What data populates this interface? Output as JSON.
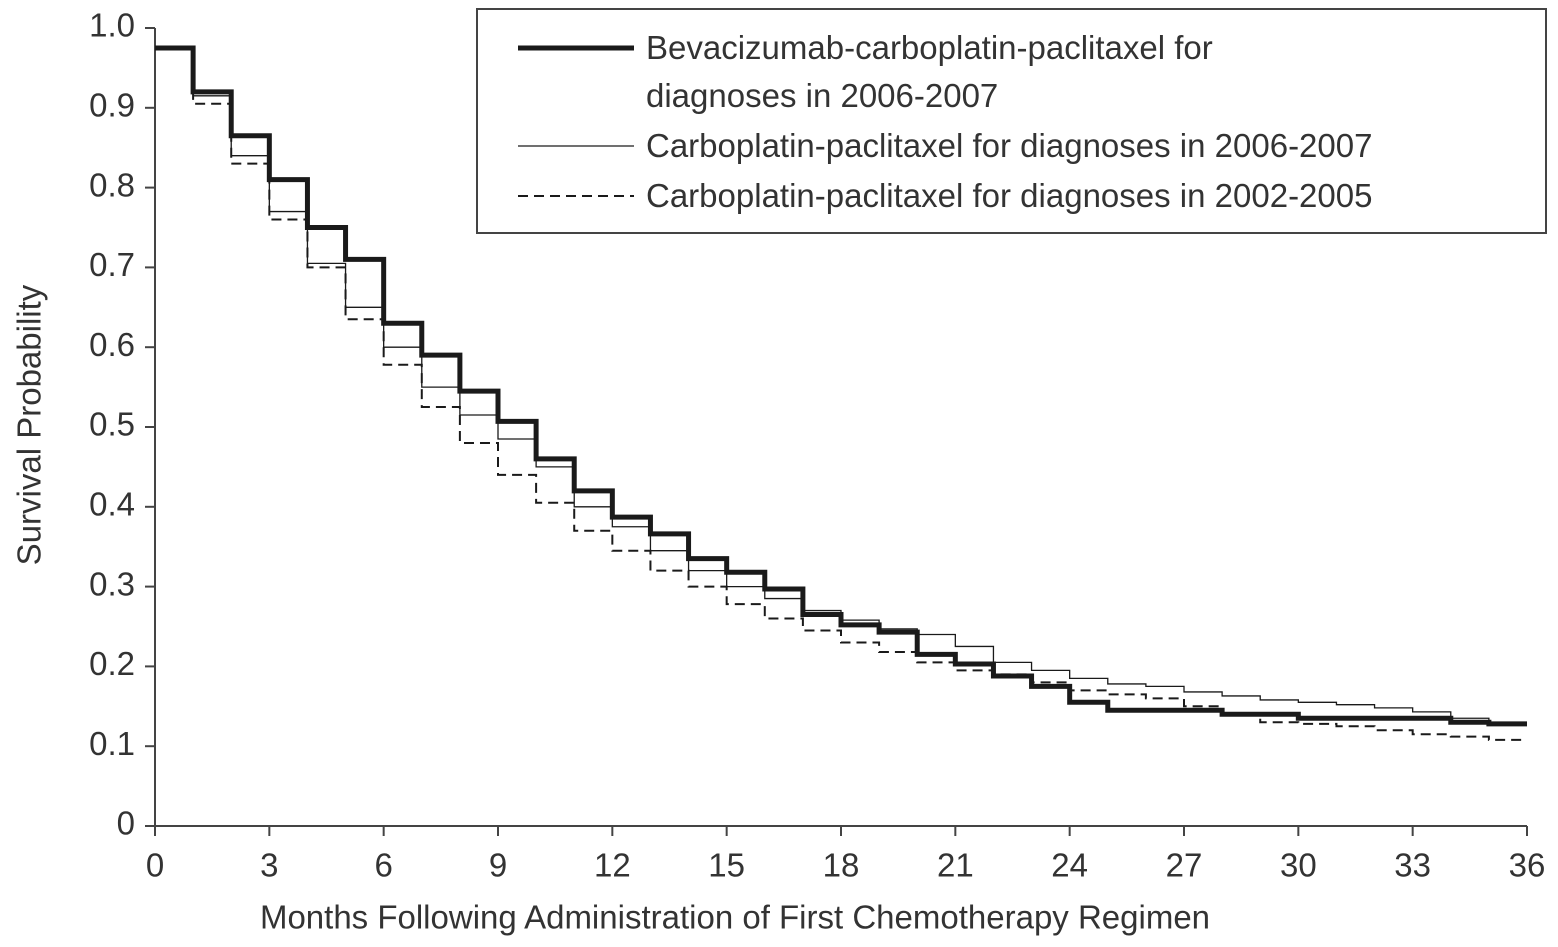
{
  "chart_data": {
    "type": "step",
    "x_label": "Months Following Administration of First Chemotherapy Regimen",
    "y_label": "Survival Probability",
    "x": [
      0,
      1,
      2,
      3,
      4,
      5,
      6,
      7,
      8,
      9,
      10,
      11,
      12,
      13,
      14,
      15,
      16,
      17,
      18,
      19,
      20,
      21,
      22,
      23,
      24,
      25,
      26,
      27,
      28,
      29,
      30,
      31,
      32,
      33,
      34,
      35,
      36
    ],
    "series": [
      {
        "name": "Bevacizumab-carboplatin-paclitaxel for diagnoses in 2006-2007",
        "color": "#1a1a1a",
        "width": 5,
        "dash": "none",
        "values": [
          0.975,
          0.92,
          0.865,
          0.81,
          0.75,
          0.71,
          0.63,
          0.59,
          0.545,
          0.507,
          0.46,
          0.42,
          0.387,
          0.366,
          0.335,
          0.318,
          0.297,
          0.265,
          0.252,
          0.243,
          0.215,
          0.203,
          0.188,
          0.175,
          0.155,
          0.145,
          0.145,
          0.145,
          0.14,
          0.14,
          0.135,
          0.135,
          0.135,
          0.135,
          0.13,
          0.128,
          0.128
        ]
      },
      {
        "name": "Carboplatin-paclitaxel for diagnoses in 2006-2007",
        "color": "#1a1a1a",
        "width": 1.3,
        "dash": "none",
        "values": [
          0.975,
          0.915,
          0.84,
          0.77,
          0.705,
          0.65,
          0.6,
          0.55,
          0.515,
          0.485,
          0.45,
          0.4,
          0.375,
          0.345,
          0.32,
          0.3,
          0.285,
          0.27,
          0.258,
          0.247,
          0.24,
          0.225,
          0.205,
          0.195,
          0.185,
          0.178,
          0.175,
          0.168,
          0.163,
          0.158,
          0.155,
          0.152,
          0.148,
          0.143,
          0.135,
          0.13,
          0.13
        ]
      },
      {
        "name": "Carboplatin-paclitaxel for diagnoses in 2002-2005",
        "color": "#1a1a1a",
        "width": 2,
        "dash": "10 6",
        "values": [
          0.975,
          0.905,
          0.83,
          0.76,
          0.7,
          0.635,
          0.578,
          0.525,
          0.48,
          0.44,
          0.405,
          0.37,
          0.345,
          0.32,
          0.3,
          0.278,
          0.26,
          0.245,
          0.23,
          0.218,
          0.205,
          0.195,
          0.19,
          0.18,
          0.17,
          0.165,
          0.16,
          0.15,
          0.14,
          0.13,
          0.128,
          0.125,
          0.12,
          0.115,
          0.112,
          0.108,
          0.108
        ]
      }
    ],
    "xlim": [
      0,
      36
    ],
    "xticks": [
      0,
      3,
      6,
      9,
      12,
      15,
      18,
      21,
      24,
      27,
      30,
      33,
      36
    ],
    "ylim": [
      0,
      1
    ],
    "yticks": [
      0,
      0.1,
      0.2,
      0.3,
      0.4,
      0.5,
      0.6,
      0.7,
      0.8,
      0.9,
      {
        "value": 1,
        "label": "1.0"
      }
    ],
    "legend": "upper right"
  }
}
